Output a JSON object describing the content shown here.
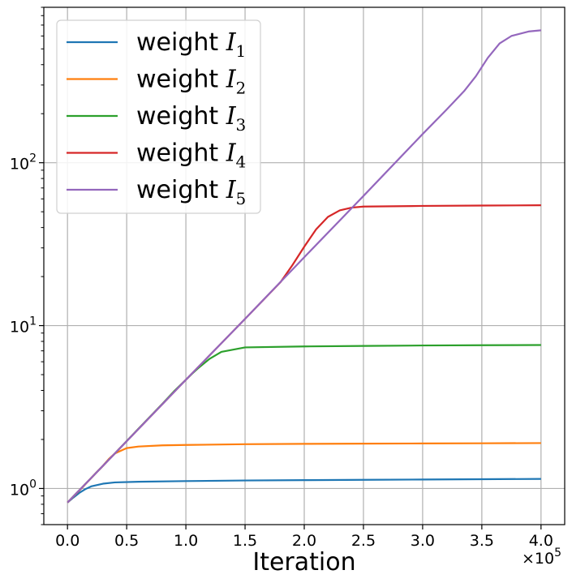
{
  "chart_data": {
    "type": "line",
    "xscale": "linear",
    "yscale": "log",
    "xlabel": "Iteration",
    "x_multiplier": "×10",
    "x_multiplier_exp": "5",
    "xlim": [
      -0.2,
      4.2
    ],
    "ylim": [
      0.6,
      900
    ],
    "xticks": [
      0.0,
      0.5,
      1.0,
      1.5,
      2.0,
      2.5,
      3.0,
      3.5,
      4.0
    ],
    "xtick_labels": [
      "0.0",
      "0.5",
      "1.0",
      "1.5",
      "2.0",
      "2.5",
      "3.0",
      "3.5",
      "4.0"
    ],
    "yticks": [
      {
        "value": 1,
        "base": "10",
        "exp": "0"
      },
      {
        "value": 10,
        "base": "10",
        "exp": "1"
      },
      {
        "value": 100,
        "base": "10",
        "exp": "2"
      }
    ],
    "grid": true,
    "legend_position": "top-left",
    "series": [
      {
        "name": "weight I1",
        "label_text": "weight",
        "var": "I",
        "sub": "1",
        "color": "#1f77b4",
        "x": [
          0,
          0.05,
          0.1,
          0.15,
          0.2,
          0.3,
          0.4,
          0.6,
          1.0,
          1.5,
          2.0,
          2.5,
          3.0,
          3.5,
          4.0
        ],
        "y": [
          0.82,
          0.88,
          0.94,
          0.99,
          1.03,
          1.07,
          1.09,
          1.1,
          1.11,
          1.12,
          1.125,
          1.13,
          1.135,
          1.14,
          1.145
        ]
      },
      {
        "name": "weight I2",
        "label_text": "weight",
        "var": "I",
        "sub": "2",
        "color": "#ff7f0e",
        "x": [
          0,
          0.1,
          0.2,
          0.3,
          0.35,
          0.4,
          0.5,
          0.6,
          0.8,
          1.0,
          1.5,
          2.0,
          2.5,
          3.0,
          3.5,
          4.0
        ],
        "y": [
          0.82,
          0.97,
          1.16,
          1.38,
          1.52,
          1.64,
          1.77,
          1.81,
          1.84,
          1.85,
          1.87,
          1.88,
          1.885,
          1.89,
          1.895,
          1.9
        ]
      },
      {
        "name": "weight I3",
        "label_text": "weight",
        "var": "I",
        "sub": "3",
        "color": "#2ca02c",
        "x": [
          0,
          0.2,
          0.4,
          0.6,
          0.8,
          0.9,
          1.0,
          1.05,
          1.1,
          1.2,
          1.3,
          1.5,
          2.0,
          2.5,
          3.0,
          3.5,
          4.0
        ],
        "y": [
          0.82,
          1.16,
          1.64,
          2.33,
          3.3,
          3.95,
          4.65,
          5.05,
          5.45,
          6.25,
          6.9,
          7.35,
          7.45,
          7.5,
          7.55,
          7.58,
          7.6
        ]
      },
      {
        "name": "weight I4",
        "label_text": "weight",
        "var": "I",
        "sub": "4",
        "color": "#d62728",
        "x": [
          0,
          0.5,
          1.0,
          1.5,
          1.8,
          1.9,
          2.0,
          2.1,
          2.2,
          2.3,
          2.4,
          2.5,
          3.0,
          3.5,
          4.0
        ],
        "y": [
          0.82,
          1.95,
          4.65,
          11.0,
          18.5,
          23.5,
          30.5,
          39,
          46.5,
          51,
          53,
          53.8,
          54.3,
          54.6,
          54.8
        ]
      },
      {
        "name": "weight I5",
        "label_text": "weight",
        "var": "I",
        "sub": "5",
        "color": "#9467bd",
        "x": [
          0,
          0.5,
          1.0,
          1.5,
          2.0,
          2.5,
          3.0,
          3.2,
          3.35,
          3.45,
          3.55,
          3.65,
          3.75,
          3.9,
          4.0
        ],
        "y": [
          0.82,
          1.95,
          4.65,
          11.0,
          26.3,
          62.5,
          150,
          211,
          275,
          340,
          440,
          540,
          600,
          640,
          650
        ]
      }
    ]
  }
}
